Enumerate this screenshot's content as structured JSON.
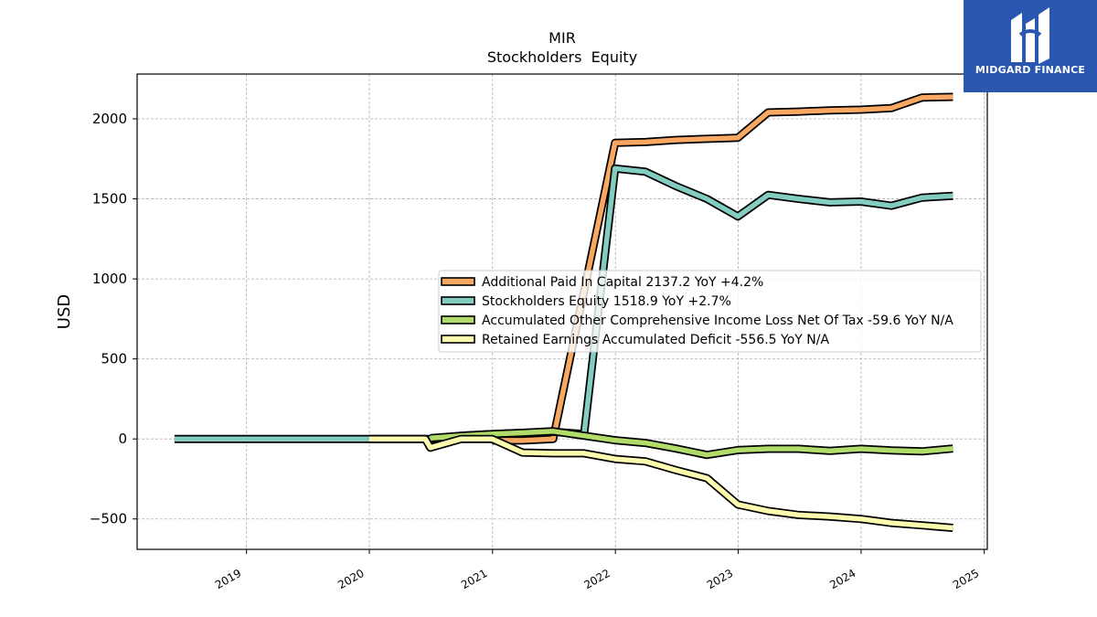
{
  "colors": {
    "additional_paid_in_capital": "#f8a862",
    "stockholders_equity": "#82cdc0",
    "aoci": "#b2dc6a",
    "retained_earnings": "#fdfbae",
    "logo_bg": "#2a58b0",
    "outline": "#000000"
  },
  "logo": {
    "text": "MIDGARD FINANCE",
    "icon": "midgard-finance-logo-icon"
  },
  "chart_data": {
    "type": "line",
    "title": "MIR",
    "subtitle": "Stockholders  Equity",
    "xlabel": "",
    "ylabel": "USD",
    "xlim": [
      "2018-02-10",
      "2025-01-10"
    ],
    "ylim": [
      -690,
      2280
    ],
    "x_ticks": [
      "2019-01-01",
      "2020-01-01",
      "2021-01-01",
      "2022-01-01",
      "2023-01-01",
      "2024-01-01",
      "2025-01-01"
    ],
    "x_tick_labels": [
      "2019",
      "2020",
      "2021",
      "2022",
      "2023",
      "2024",
      "2025"
    ],
    "y_ticks": [
      -500,
      0,
      500,
      1000,
      1500,
      2000
    ],
    "y_tick_labels": [
      "−500",
      "0",
      "500",
      "1000",
      "1500",
      "2000"
    ],
    "grid": true,
    "legend_position": "center-right",
    "series": [
      {
        "name": "Additional Paid In Capital",
        "legend": "Additional Paid In Capital  2137.2 YoY +4.2%",
        "color_key": "additional_paid_in_capital",
        "points": [
          [
            "2020-12-31",
            -10
          ],
          [
            "2021-03-31",
            -10
          ],
          [
            "2021-06-30",
            0
          ],
          [
            "2021-12-31",
            1850
          ],
          [
            "2022-03-31",
            1855
          ],
          [
            "2022-06-30",
            1868
          ],
          [
            "2022-09-30",
            1875
          ],
          [
            "2022-12-31",
            1882
          ],
          [
            "2023-03-31",
            2040
          ],
          [
            "2023-06-30",
            2045
          ],
          [
            "2023-09-30",
            2053
          ],
          [
            "2023-12-31",
            2057
          ],
          [
            "2024-03-31",
            2067
          ],
          [
            "2024-06-30",
            2133
          ],
          [
            "2024-09-30",
            2137
          ]
        ]
      },
      {
        "name": "Stockholders Equity",
        "legend": "Stockholders Equity  1518.9 YoY +2.7%",
        "color_key": "stockholders_equity",
        "points": [
          [
            "2018-06-01",
            0
          ],
          [
            "2019-12-31",
            0
          ],
          [
            "2020-06-30",
            0
          ],
          [
            "2020-09-30",
            20
          ],
          [
            "2020-12-31",
            30
          ],
          [
            "2021-06-30",
            45
          ],
          [
            "2021-09-30",
            30
          ],
          [
            "2021-12-31",
            1690
          ],
          [
            "2022-03-31",
            1670
          ],
          [
            "2022-06-30",
            1580
          ],
          [
            "2022-09-30",
            1500
          ],
          [
            "2022-12-31",
            1390
          ],
          [
            "2023-03-31",
            1525
          ],
          [
            "2023-06-30",
            1500
          ],
          [
            "2023-09-30",
            1478
          ],
          [
            "2023-12-31",
            1483
          ],
          [
            "2024-03-31",
            1457
          ],
          [
            "2024-06-30",
            1508
          ],
          [
            "2024-09-30",
            1519
          ]
        ]
      },
      {
        "name": "Accumulated Other Comprehensive Income Loss Net Of Tax",
        "legend": "Accumulated Other Comprehensive Income Loss Net Of Tax  -59.6 YoY N/A",
        "color_key": "aoci",
        "points": [
          [
            "2020-06-30",
            5
          ],
          [
            "2020-09-30",
            20
          ],
          [
            "2020-12-31",
            30
          ],
          [
            "2021-03-31",
            38
          ],
          [
            "2021-06-30",
            48
          ],
          [
            "2021-09-30",
            20
          ],
          [
            "2021-12-31",
            -8
          ],
          [
            "2022-03-31",
            -25
          ],
          [
            "2022-06-30",
            -60
          ],
          [
            "2022-09-30",
            -100
          ],
          [
            "2022-12-31",
            -70
          ],
          [
            "2023-03-31",
            -62
          ],
          [
            "2023-06-30",
            -62
          ],
          [
            "2023-09-30",
            -75
          ],
          [
            "2023-12-31",
            -62
          ],
          [
            "2024-03-31",
            -72
          ],
          [
            "2024-06-30",
            -78
          ],
          [
            "2024-09-30",
            -60
          ]
        ]
      },
      {
        "name": "Retained Earnings Accumulated Deficit",
        "legend": "Retained Earnings Accumulated Deficit  -556.5 YoY N/A",
        "color_key": "retained_earnings",
        "points": [
          [
            "2019-12-31",
            0
          ],
          [
            "2020-06-15",
            0
          ],
          [
            "2020-06-30",
            -55
          ],
          [
            "2020-09-30",
            0
          ],
          [
            "2020-12-31",
            0
          ],
          [
            "2021-03-31",
            -85
          ],
          [
            "2021-06-30",
            -90
          ],
          [
            "2021-09-30",
            -90
          ],
          [
            "2021-12-31",
            -125
          ],
          [
            "2022-03-31",
            -140
          ],
          [
            "2022-06-30",
            -195
          ],
          [
            "2022-09-30",
            -245
          ],
          [
            "2022-12-31",
            -410
          ],
          [
            "2023-03-31",
            -450
          ],
          [
            "2023-06-30",
            -475
          ],
          [
            "2023-09-30",
            -485
          ],
          [
            "2023-12-31",
            -500
          ],
          [
            "2024-03-31",
            -525
          ],
          [
            "2024-06-30",
            -540
          ],
          [
            "2024-09-30",
            -556
          ]
        ]
      }
    ]
  }
}
